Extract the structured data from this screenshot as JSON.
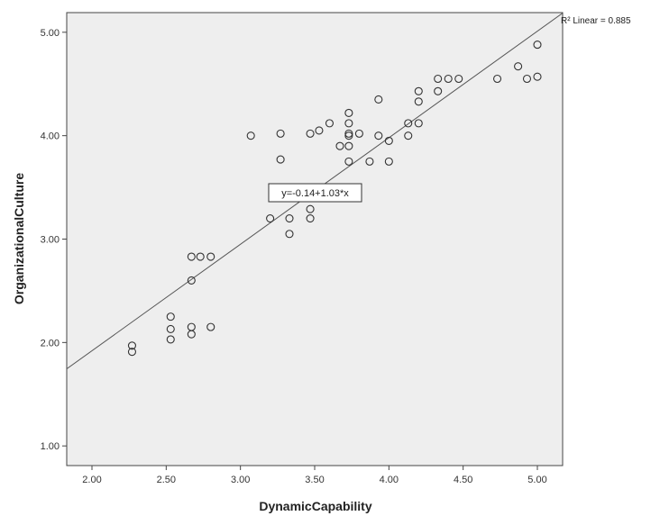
{
  "chart_data": {
    "type": "scatter",
    "xlabel": "DynamicCapability",
    "ylabel": "OrganizationalCulture",
    "xlim": [
      1.83,
      5.17
    ],
    "ylim": [
      0.81,
      5.19
    ],
    "x_ticks": [
      "2.00",
      "2.50",
      "3.00",
      "3.50",
      "4.00",
      "4.50",
      "5.00"
    ],
    "y_ticks": [
      "1.00",
      "2.00",
      "3.00",
      "4.00",
      "5.00"
    ],
    "grid": false,
    "background_color": "#eeeeee",
    "marker_color": "#333333",
    "fit_line": {
      "intercept": -0.14,
      "slope": 1.03
    },
    "equation_label": "y=-0.14+1.03*x",
    "r2_label": "R² Linear = 0.885",
    "points": [
      [
        2.27,
        1.97
      ],
      [
        2.27,
        1.91
      ],
      [
        2.53,
        2.25
      ],
      [
        2.53,
        2.13
      ],
      [
        2.53,
        2.03
      ],
      [
        2.67,
        2.15
      ],
      [
        2.67,
        2.08
      ],
      [
        2.8,
        2.15
      ],
      [
        2.67,
        2.6
      ],
      [
        2.67,
        2.83
      ],
      [
        2.73,
        2.83
      ],
      [
        2.8,
        2.83
      ],
      [
        3.07,
        4.0
      ],
      [
        3.2,
        3.2
      ],
      [
        3.27,
        4.02
      ],
      [
        3.27,
        3.77
      ],
      [
        3.33,
        3.2
      ],
      [
        3.33,
        3.05
      ],
      [
        3.47,
        3.29
      ],
      [
        3.47,
        3.2
      ],
      [
        3.47,
        4.02
      ],
      [
        3.53,
        4.05
      ],
      [
        3.6,
        4.12
      ],
      [
        3.67,
        3.9
      ],
      [
        3.73,
        4.22
      ],
      [
        3.73,
        4.12
      ],
      [
        3.73,
        4.02
      ],
      [
        3.73,
        4.0
      ],
      [
        3.73,
        3.9
      ],
      [
        3.73,
        3.75
      ],
      [
        3.8,
        4.02
      ],
      [
        3.87,
        3.75
      ],
      [
        3.93,
        4.35
      ],
      [
        3.93,
        4.0
      ],
      [
        4.0,
        3.95
      ],
      [
        4.0,
        3.75
      ],
      [
        4.13,
        4.12
      ],
      [
        4.13,
        4.0
      ],
      [
        4.2,
        4.43
      ],
      [
        4.2,
        4.33
      ],
      [
        4.2,
        4.12
      ],
      [
        4.33,
        4.55
      ],
      [
        4.33,
        4.43
      ],
      [
        4.4,
        4.55
      ],
      [
        4.47,
        4.55
      ],
      [
        4.73,
        4.55
      ],
      [
        4.87,
        4.67
      ],
      [
        4.93,
        4.55
      ],
      [
        5.0,
        4.88
      ],
      [
        5.0,
        4.57
      ]
    ]
  }
}
